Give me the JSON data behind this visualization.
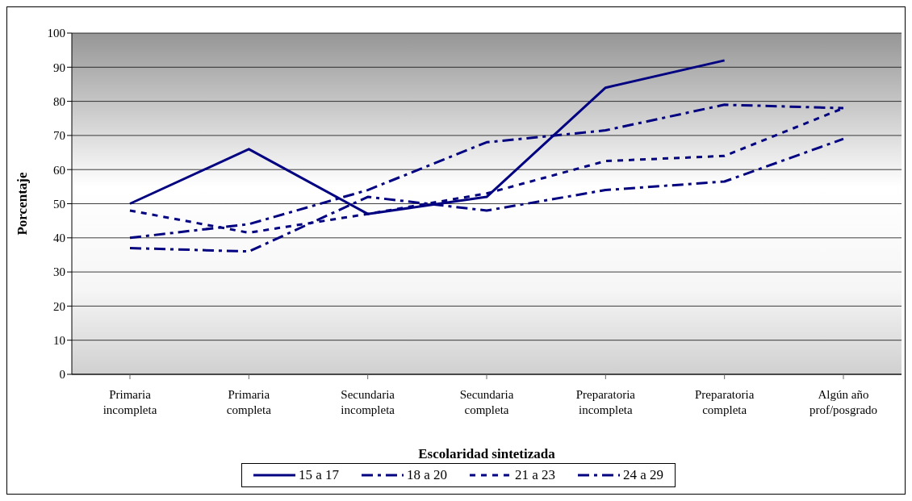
{
  "chart_data": {
    "type": "line",
    "xlabel": "Escolaridad sintetizada",
    "ylabel": "Porcentaje",
    "categories": [
      "Primaria\nincompleta",
      "Primaria\ncompleta",
      "Secundaria\nincompleta",
      "Secundaria\ncompleta",
      "Preparatoria\nincompleta",
      "Preparatoria\ncompleta",
      "Algún año\nprof/posgrado"
    ],
    "series": [
      {
        "name": "15 a 17",
        "color": "#000080",
        "line_style": "solid",
        "values": [
          50,
          66,
          47,
          52,
          84,
          92,
          null
        ]
      },
      {
        "name": "18 a 20",
        "color": "#000080",
        "line_style": "dashed",
        "values": [
          37,
          36,
          52,
          48,
          54,
          56.5,
          69
        ]
      },
      {
        "name": "21 a 23",
        "color": "#000080",
        "line_style": "dotted",
        "values": [
          48,
          41.5,
          47,
          53,
          62.5,
          64,
          78
        ]
      },
      {
        "name": "24 a 29",
        "color": "#000080",
        "line_style": "dashed",
        "values": [
          40,
          44,
          54,
          68,
          71.5,
          79,
          78
        ]
      }
    ],
    "ylim": [
      0,
      100
    ],
    "yticks": [
      0,
      10,
      20,
      30,
      40,
      50,
      60,
      70,
      80,
      90,
      100
    ],
    "grid": "y",
    "legend": "bottom",
    "marker": "none"
  }
}
